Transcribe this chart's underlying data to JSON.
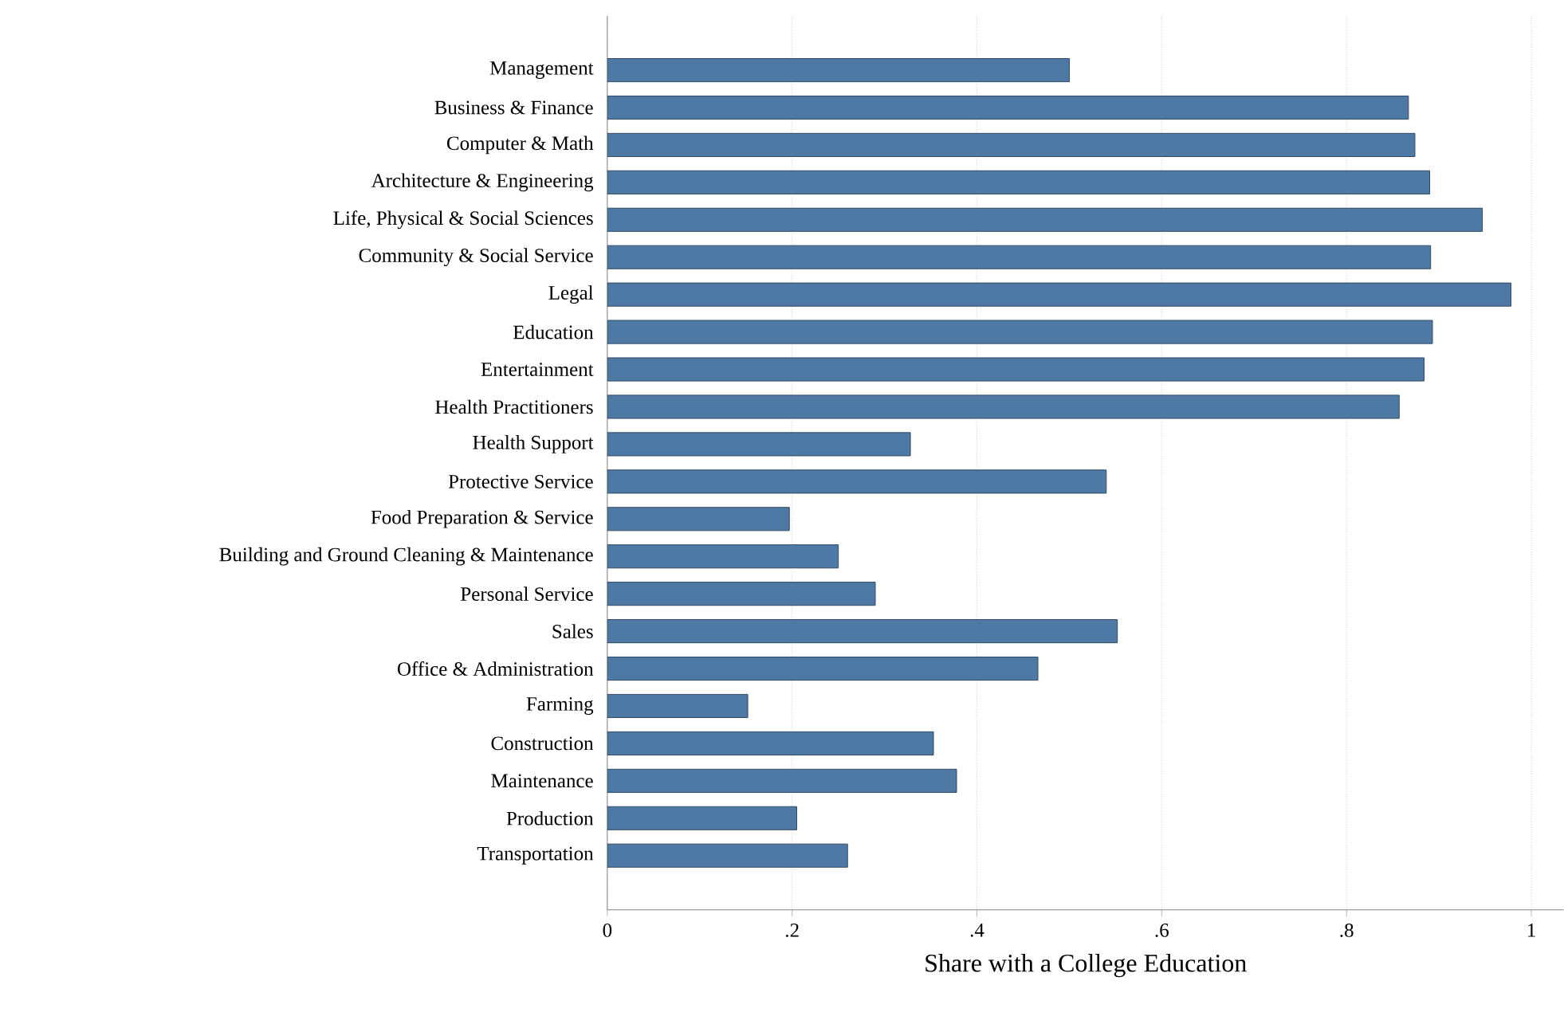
{
  "chart_data": {
    "type": "bar",
    "orientation": "horizontal",
    "xlabel": "Share with a College Education",
    "categories": [
      "Management",
      "Business & Finance",
      "Computer & Math",
      "Architecture & Engineering",
      "Life, Physical & Social Sciences",
      "Community & Social Service",
      "Legal",
      "Education",
      "Entertainment",
      "Health Practitioners",
      "Health Support",
      "Protective Service",
      "Food Preparation & Service",
      "Building and Ground Cleaning & Maintenance",
      "Personal Service",
      "Sales",
      "Office & Administration",
      "Farming",
      "Construction",
      "Maintenance",
      "Production",
      "Transportation"
    ],
    "values": [
      0.5,
      0.867,
      0.874,
      0.89,
      0.947,
      0.891,
      0.978,
      0.893,
      0.884,
      0.857,
      0.328,
      0.54,
      0.197,
      0.25,
      0.29,
      0.552,
      0.466,
      0.152,
      0.353,
      0.378,
      0.205,
      0.26
    ],
    "color": "#4e79a5",
    "xlim": [
      0,
      1.035
    ],
    "xticks": [
      0,
      {
        "value": 0.2,
        "label": ".2"
      },
      {
        "value": 0.4,
        "label": ".4"
      },
      {
        "value": 0.6,
        "label": ".6"
      },
      {
        "value": 0.8,
        "label": ".8"
      },
      1
    ],
    "grid": "x"
  }
}
